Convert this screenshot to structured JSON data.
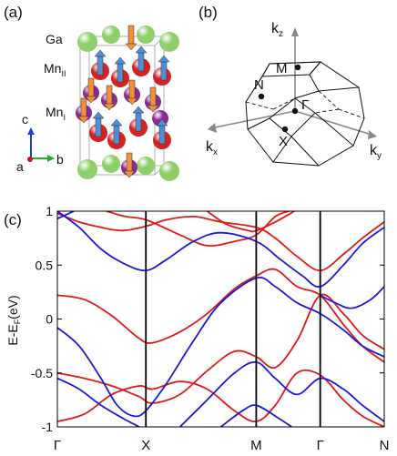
{
  "panels": {
    "a": {
      "label": "(a)"
    },
    "b": {
      "label": "(b)"
    },
    "c": {
      "label": "(c)"
    }
  },
  "crystal": {
    "site_labels": {
      "ga": "Ga",
      "mn2": "Mn",
      "mn2_sub": "II",
      "mn1": "Mn",
      "mn1_sub": "I"
    },
    "axes": {
      "c": "c",
      "a": "a",
      "b": "b"
    },
    "colors": {
      "ga": "#8fcf6a",
      "mn1": "#8b2a8f",
      "mn2": "#d42222",
      "spin_up": "#4f8fd6",
      "spin_down": "#f0913a"
    }
  },
  "brillouin_zone": {
    "axes": {
      "kz": "k",
      "kz_sub": "z",
      "kx": "k",
      "kx_sub": "x",
      "ky": "k",
      "ky_sub": "y"
    },
    "points": {
      "M": "M",
      "N": "N",
      "Gamma": "Γ",
      "X": "X"
    }
  },
  "chart_data": {
    "type": "line",
    "ylabel_main": "E-E",
    "ylabel_sub": "F",
    "ylabel_unit": "(eV)",
    "ylim": [
      -1,
      1
    ],
    "yticks": [
      -1,
      -0.5,
      0,
      0.5,
      1
    ],
    "ytick_labels": [
      "-1",
      "-0.5",
      "0",
      "0.5",
      "1"
    ],
    "kpoint_positions": [
      0,
      0.325,
      0.73,
      0.965,
      1.2
    ],
    "kpoint_labels": [
      "Γ",
      "X",
      "M",
      "Γ",
      "N"
    ],
    "series": [
      {
        "color": "#e01818",
        "bands": [
          [
            [
              0,
              0.22
            ],
            [
              0.1,
              0.18
            ],
            [
              0.2,
              0.03
            ],
            [
              0.3,
              -0.18
            ],
            [
              0.35,
              -0.22
            ],
            [
              0.45,
              -0.12
            ],
            [
              0.55,
              0.05
            ],
            [
              0.65,
              0.28
            ],
            [
              0.73,
              0.4
            ],
            [
              0.8,
              0.46
            ],
            [
              0.88,
              0.3
            ],
            [
              0.965,
              0.22
            ],
            [
              1.05,
              -0.05
            ],
            [
              1.12,
              -0.25
            ],
            [
              1.2,
              -0.4
            ]
          ],
          [
            [
              0,
              -0.5
            ],
            [
              0.1,
              -0.55
            ],
            [
              0.2,
              -0.62
            ],
            [
              0.3,
              -0.72
            ],
            [
              0.35,
              -0.78
            ],
            [
              0.45,
              -0.7
            ],
            [
              0.55,
              -0.48
            ],
            [
              0.65,
              -0.3
            ],
            [
              0.73,
              -0.35
            ],
            [
              0.8,
              -0.45
            ],
            [
              0.88,
              -0.2
            ],
            [
              0.965,
              0.22
            ],
            [
              1.05,
              0.05
            ],
            [
              1.12,
              -0.15
            ],
            [
              1.2,
              -0.28
            ]
          ],
          [
            [
              0,
              -0.95
            ],
            [
              0.1,
              -0.88
            ],
            [
              0.2,
              -0.7
            ],
            [
              0.3,
              -0.62
            ],
            [
              0.35,
              -0.65
            ],
            [
              0.45,
              -0.58
            ],
            [
              0.55,
              -0.65
            ],
            [
              0.65,
              -0.85
            ],
            [
              0.73,
              -0.95
            ],
            [
              0.8,
              -0.8
            ],
            [
              0.88,
              -0.5
            ],
            [
              0.965,
              -0.52
            ],
            [
              1.05,
              -0.75
            ],
            [
              1.12,
              -0.9
            ],
            [
              1.2,
              -1.0
            ]
          ],
          [
            [
              0,
              0.98
            ],
            [
              0.08,
              0.9
            ],
            [
              0.16,
              0.85
            ],
            [
              0.24,
              0.82
            ],
            [
              0.325,
              0.86
            ],
            [
              0.4,
              0.92
            ],
            [
              0.5,
              0.95
            ],
            [
              0.6,
              0.9
            ],
            [
              0.73,
              0.85
            ],
            [
              0.8,
              0.75
            ],
            [
              0.88,
              0.58
            ],
            [
              0.965,
              0.45
            ],
            [
              1.05,
              0.6
            ],
            [
              1.12,
              0.75
            ],
            [
              1.2,
              0.9
            ]
          ],
          [
            [
              0.18,
              1.0
            ],
            [
              0.25,
              0.95
            ],
            [
              0.325,
              0.92
            ],
            [
              0.45,
              0.78
            ],
            [
              0.55,
              0.68
            ],
            [
              0.65,
              0.72
            ],
            [
              0.73,
              0.78
            ],
            [
              0.8,
              0.95
            ],
            [
              0.85,
              1.0
            ]
          ],
          [
            [
              0.55,
              1.0
            ],
            [
              0.62,
              0.88
            ],
            [
              0.7,
              0.82
            ],
            [
              0.73,
              0.82
            ],
            [
              0.8,
              0.9
            ],
            [
              0.87,
              1.0
            ]
          ]
        ]
      },
      {
        "color": "#1a1ad8",
        "bands": [
          [
            [
              0,
              1.0
            ],
            [
              0.08,
              0.85
            ],
            [
              0.16,
              0.65
            ],
            [
              0.24,
              0.52
            ],
            [
              0.325,
              0.45
            ],
            [
              0.4,
              0.55
            ],
            [
              0.5,
              0.72
            ],
            [
              0.6,
              0.8
            ],
            [
              0.73,
              0.72
            ],
            [
              0.82,
              0.55
            ],
            [
              0.9,
              0.4
            ],
            [
              0.965,
              0.3
            ],
            [
              1.05,
              0.5
            ],
            [
              1.12,
              0.7
            ],
            [
              1.2,
              0.85
            ]
          ],
          [
            [
              0,
              0.93
            ],
            [
              0.06,
              1.0
            ]
          ],
          [
            [
              0,
              -0.08
            ],
            [
              0.08,
              -0.25
            ],
            [
              0.16,
              -0.55
            ],
            [
              0.22,
              -0.8
            ],
            [
              0.28,
              -0.9
            ],
            [
              0.325,
              -0.85
            ],
            [
              0.4,
              -0.6
            ],
            [
              0.5,
              -0.2
            ],
            [
              0.6,
              0.15
            ],
            [
              0.73,
              0.38
            ],
            [
              0.8,
              0.3
            ],
            [
              0.88,
              0.15
            ],
            [
              0.965,
              0.05
            ],
            [
              1.05,
              -0.1
            ],
            [
              1.12,
              -0.25
            ],
            [
              1.2,
              -0.35
            ]
          ],
          [
            [
              0,
              -0.55
            ],
            [
              0.08,
              -0.65
            ],
            [
              0.16,
              -0.8
            ],
            [
              0.24,
              -0.92
            ],
            [
              0.3,
              -1.0
            ]
          ],
          [
            [
              0.45,
              -1.0
            ],
            [
              0.55,
              -0.75
            ],
            [
              0.65,
              -0.5
            ],
            [
              0.73,
              -0.4
            ],
            [
              0.8,
              -0.55
            ],
            [
              0.88,
              -0.7
            ],
            [
              0.965,
              -0.55
            ],
            [
              1.05,
              -0.65
            ],
            [
              1.12,
              -0.8
            ],
            [
              1.2,
              -0.95
            ]
          ],
          [
            [
              0.6,
              -1.0
            ],
            [
              0.68,
              -0.85
            ],
            [
              0.73,
              -0.8
            ],
            [
              0.8,
              -0.9
            ],
            [
              0.86,
              -1.0
            ]
          ],
          [
            [
              0.965,
              0.22
            ],
            [
              1.02,
              0.15
            ],
            [
              1.08,
              0.1
            ],
            [
              1.15,
              0.18
            ],
            [
              1.2,
              0.3
            ]
          ]
        ]
      }
    ]
  }
}
